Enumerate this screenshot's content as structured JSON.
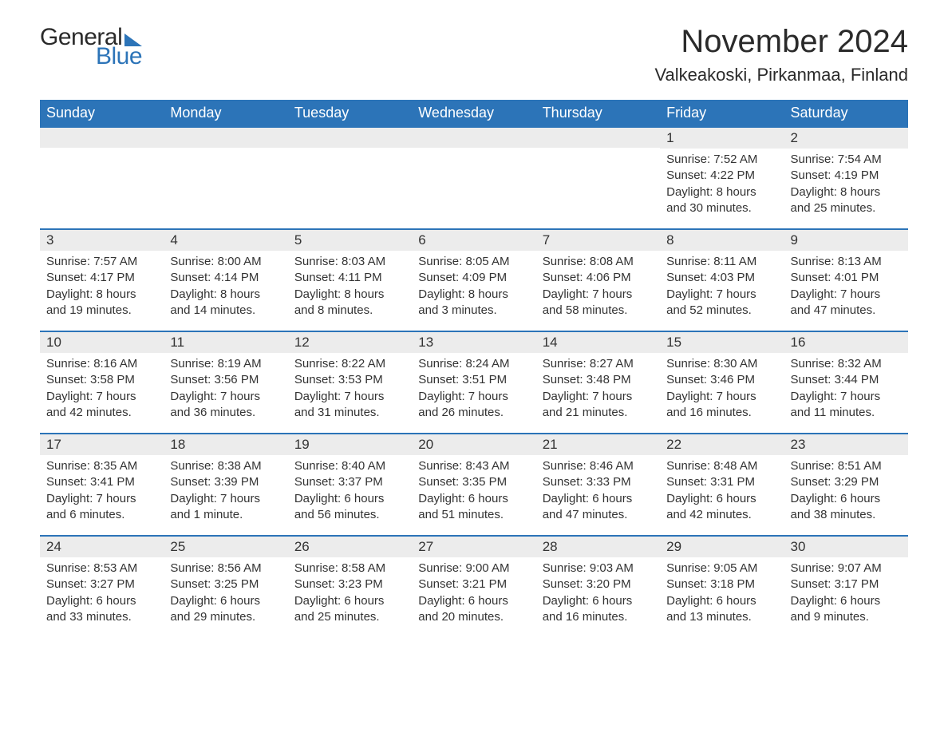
{
  "brand": {
    "general": "General",
    "blue": "Blue"
  },
  "title": "November 2024",
  "location": "Valkeakoski, Pirkanmaa, Finland",
  "colors": {
    "accent": "#2c74b8",
    "header_bg": "#2c74b8",
    "header_text": "#ffffff",
    "daynum_bg": "#ececec",
    "text": "#333333",
    "background": "#ffffff"
  },
  "typography": {
    "month_title_size": 40,
    "location_size": 22,
    "weekday_size": 18,
    "daynum_size": 17,
    "detail_size": 15,
    "font_family": "Arial"
  },
  "weekdays": [
    "Sunday",
    "Monday",
    "Tuesday",
    "Wednesday",
    "Thursday",
    "Friday",
    "Saturday"
  ],
  "leading_blanks": 5,
  "days": [
    {
      "n": "1",
      "sunrise": "Sunrise: 7:52 AM",
      "sunset": "Sunset: 4:22 PM",
      "dl1": "Daylight: 8 hours",
      "dl2": "and 30 minutes."
    },
    {
      "n": "2",
      "sunrise": "Sunrise: 7:54 AM",
      "sunset": "Sunset: 4:19 PM",
      "dl1": "Daylight: 8 hours",
      "dl2": "and 25 minutes."
    },
    {
      "n": "3",
      "sunrise": "Sunrise: 7:57 AM",
      "sunset": "Sunset: 4:17 PM",
      "dl1": "Daylight: 8 hours",
      "dl2": "and 19 minutes."
    },
    {
      "n": "4",
      "sunrise": "Sunrise: 8:00 AM",
      "sunset": "Sunset: 4:14 PM",
      "dl1": "Daylight: 8 hours",
      "dl2": "and 14 minutes."
    },
    {
      "n": "5",
      "sunrise": "Sunrise: 8:03 AM",
      "sunset": "Sunset: 4:11 PM",
      "dl1": "Daylight: 8 hours",
      "dl2": "and 8 minutes."
    },
    {
      "n": "6",
      "sunrise": "Sunrise: 8:05 AM",
      "sunset": "Sunset: 4:09 PM",
      "dl1": "Daylight: 8 hours",
      "dl2": "and 3 minutes."
    },
    {
      "n": "7",
      "sunrise": "Sunrise: 8:08 AM",
      "sunset": "Sunset: 4:06 PM",
      "dl1": "Daylight: 7 hours",
      "dl2": "and 58 minutes."
    },
    {
      "n": "8",
      "sunrise": "Sunrise: 8:11 AM",
      "sunset": "Sunset: 4:03 PM",
      "dl1": "Daylight: 7 hours",
      "dl2": "and 52 minutes."
    },
    {
      "n": "9",
      "sunrise": "Sunrise: 8:13 AM",
      "sunset": "Sunset: 4:01 PM",
      "dl1": "Daylight: 7 hours",
      "dl2": "and 47 minutes."
    },
    {
      "n": "10",
      "sunrise": "Sunrise: 8:16 AM",
      "sunset": "Sunset: 3:58 PM",
      "dl1": "Daylight: 7 hours",
      "dl2": "and 42 minutes."
    },
    {
      "n": "11",
      "sunrise": "Sunrise: 8:19 AM",
      "sunset": "Sunset: 3:56 PM",
      "dl1": "Daylight: 7 hours",
      "dl2": "and 36 minutes."
    },
    {
      "n": "12",
      "sunrise": "Sunrise: 8:22 AM",
      "sunset": "Sunset: 3:53 PM",
      "dl1": "Daylight: 7 hours",
      "dl2": "and 31 minutes."
    },
    {
      "n": "13",
      "sunrise": "Sunrise: 8:24 AM",
      "sunset": "Sunset: 3:51 PM",
      "dl1": "Daylight: 7 hours",
      "dl2": "and 26 minutes."
    },
    {
      "n": "14",
      "sunrise": "Sunrise: 8:27 AM",
      "sunset": "Sunset: 3:48 PM",
      "dl1": "Daylight: 7 hours",
      "dl2": "and 21 minutes."
    },
    {
      "n": "15",
      "sunrise": "Sunrise: 8:30 AM",
      "sunset": "Sunset: 3:46 PM",
      "dl1": "Daylight: 7 hours",
      "dl2": "and 16 minutes."
    },
    {
      "n": "16",
      "sunrise": "Sunrise: 8:32 AM",
      "sunset": "Sunset: 3:44 PM",
      "dl1": "Daylight: 7 hours",
      "dl2": "and 11 minutes."
    },
    {
      "n": "17",
      "sunrise": "Sunrise: 8:35 AM",
      "sunset": "Sunset: 3:41 PM",
      "dl1": "Daylight: 7 hours",
      "dl2": "and 6 minutes."
    },
    {
      "n": "18",
      "sunrise": "Sunrise: 8:38 AM",
      "sunset": "Sunset: 3:39 PM",
      "dl1": "Daylight: 7 hours",
      "dl2": "and 1 minute."
    },
    {
      "n": "19",
      "sunrise": "Sunrise: 8:40 AM",
      "sunset": "Sunset: 3:37 PM",
      "dl1": "Daylight: 6 hours",
      "dl2": "and 56 minutes."
    },
    {
      "n": "20",
      "sunrise": "Sunrise: 8:43 AM",
      "sunset": "Sunset: 3:35 PM",
      "dl1": "Daylight: 6 hours",
      "dl2": "and 51 minutes."
    },
    {
      "n": "21",
      "sunrise": "Sunrise: 8:46 AM",
      "sunset": "Sunset: 3:33 PM",
      "dl1": "Daylight: 6 hours",
      "dl2": "and 47 minutes."
    },
    {
      "n": "22",
      "sunrise": "Sunrise: 8:48 AM",
      "sunset": "Sunset: 3:31 PM",
      "dl1": "Daylight: 6 hours",
      "dl2": "and 42 minutes."
    },
    {
      "n": "23",
      "sunrise": "Sunrise: 8:51 AM",
      "sunset": "Sunset: 3:29 PM",
      "dl1": "Daylight: 6 hours",
      "dl2": "and 38 minutes."
    },
    {
      "n": "24",
      "sunrise": "Sunrise: 8:53 AM",
      "sunset": "Sunset: 3:27 PM",
      "dl1": "Daylight: 6 hours",
      "dl2": "and 33 minutes."
    },
    {
      "n": "25",
      "sunrise": "Sunrise: 8:56 AM",
      "sunset": "Sunset: 3:25 PM",
      "dl1": "Daylight: 6 hours",
      "dl2": "and 29 minutes."
    },
    {
      "n": "26",
      "sunrise": "Sunrise: 8:58 AM",
      "sunset": "Sunset: 3:23 PM",
      "dl1": "Daylight: 6 hours",
      "dl2": "and 25 minutes."
    },
    {
      "n": "27",
      "sunrise": "Sunrise: 9:00 AM",
      "sunset": "Sunset: 3:21 PM",
      "dl1": "Daylight: 6 hours",
      "dl2": "and 20 minutes."
    },
    {
      "n": "28",
      "sunrise": "Sunrise: 9:03 AM",
      "sunset": "Sunset: 3:20 PM",
      "dl1": "Daylight: 6 hours",
      "dl2": "and 16 minutes."
    },
    {
      "n": "29",
      "sunrise": "Sunrise: 9:05 AM",
      "sunset": "Sunset: 3:18 PM",
      "dl1": "Daylight: 6 hours",
      "dl2": "and 13 minutes."
    },
    {
      "n": "30",
      "sunrise": "Sunrise: 9:07 AM",
      "sunset": "Sunset: 3:17 PM",
      "dl1": "Daylight: 6 hours",
      "dl2": "and 9 minutes."
    }
  ]
}
